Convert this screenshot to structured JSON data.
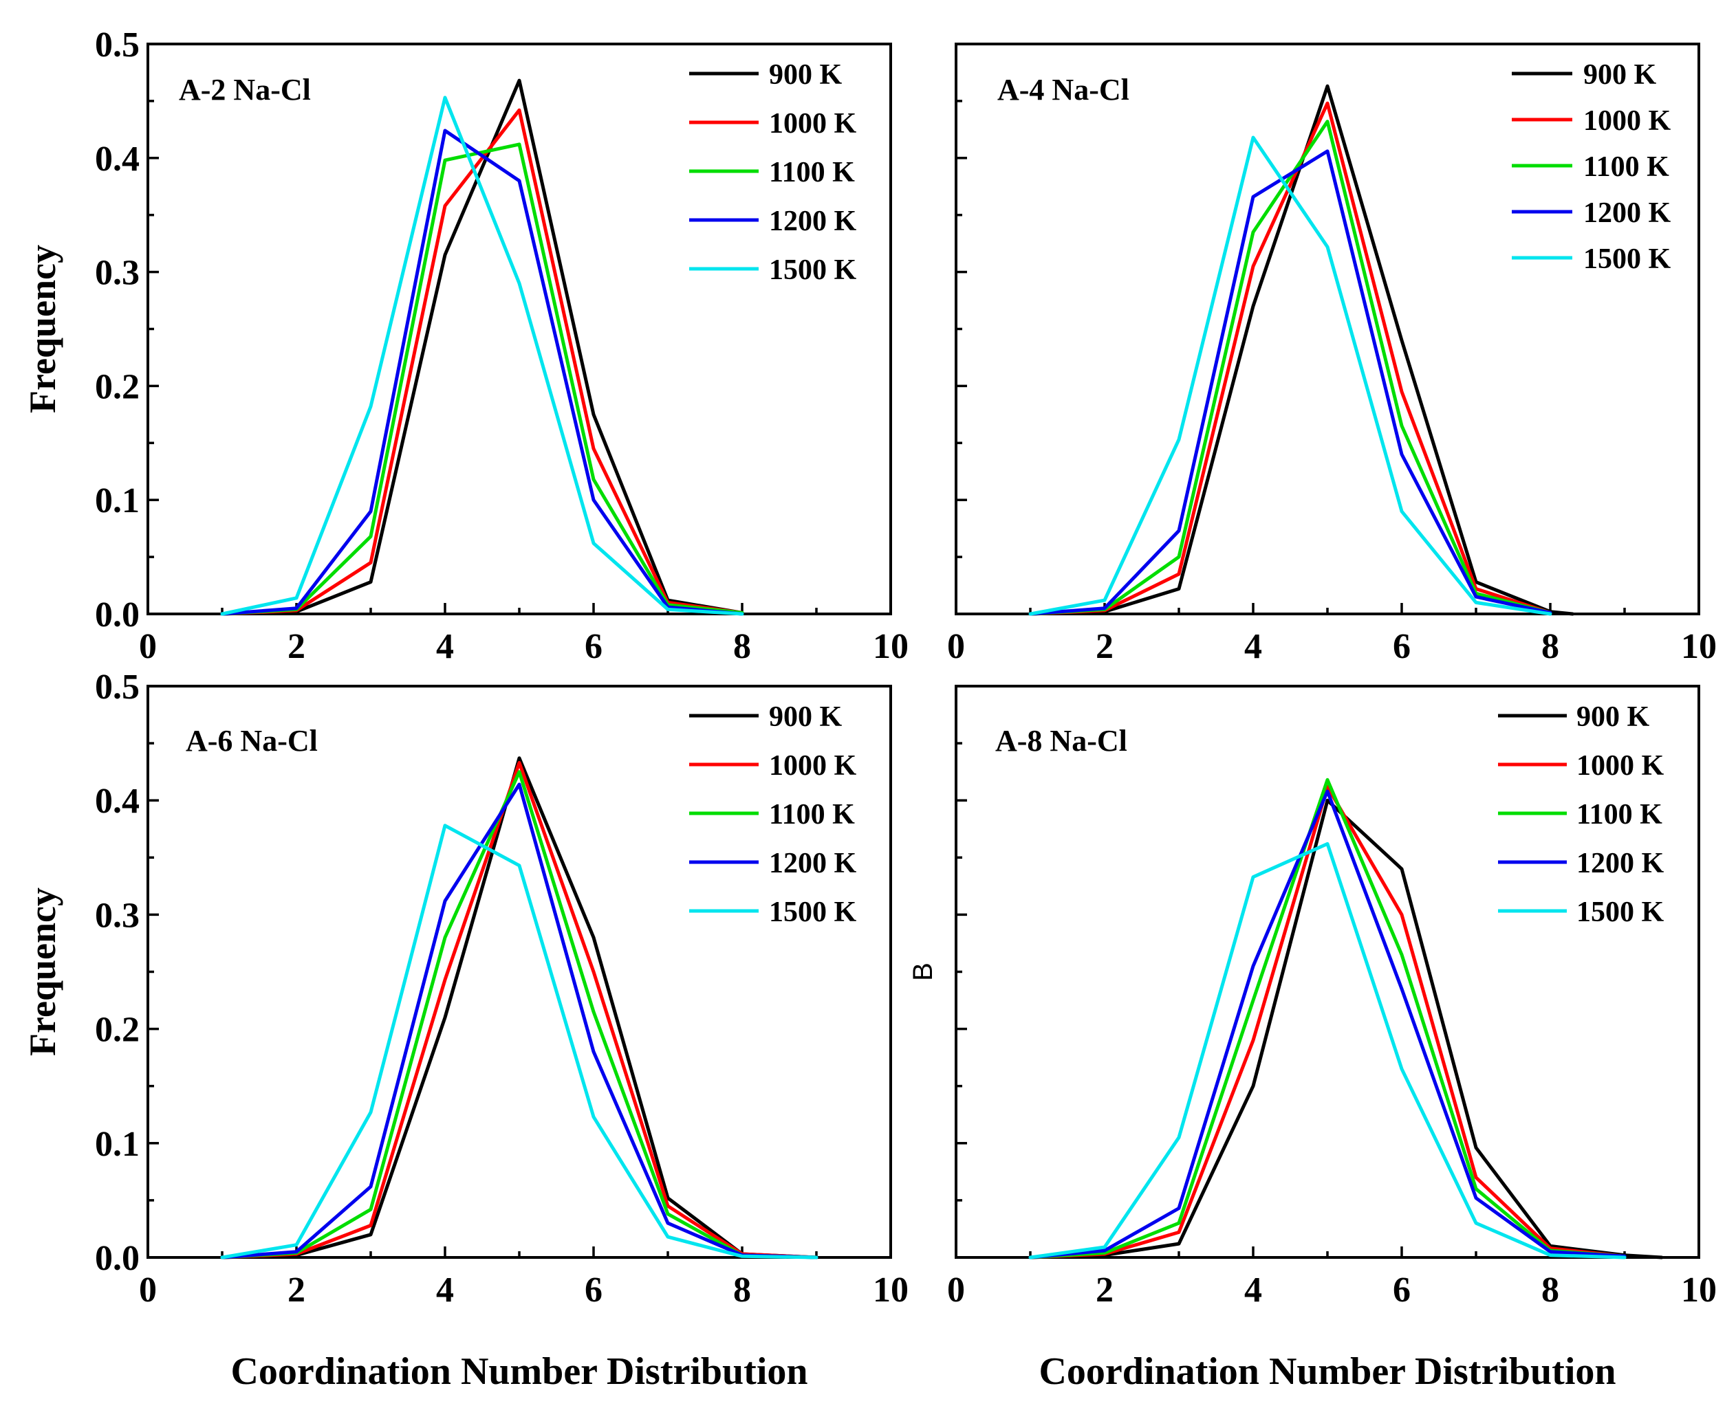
{
  "chart_data": [
    {
      "type": "line",
      "title": "A-2 Na-Cl",
      "ylabel": "Frequency",
      "xlabel": "Coordination Number Distribution",
      "xlim": [
        0,
        10
      ],
      "ylim": [
        0,
        0.5
      ],
      "xticks": [
        "0",
        "2",
        "4",
        "6",
        "8",
        "10"
      ],
      "yticks": [
        "0.0",
        "0.1",
        "0.2",
        "0.3",
        "0.4",
        "0.5"
      ],
      "legend_position": "top-right",
      "series": [
        {
          "name": "900 K",
          "color": "#000000",
          "x": [
            1,
            2,
            3,
            4,
            5,
            6,
            7,
            8
          ],
          "y": [
            0,
            0.002,
            0.028,
            0.315,
            0.468,
            0.175,
            0.012,
            0.001
          ]
        },
        {
          "name": "1000 K",
          "color": "#ff0000",
          "x": [
            1,
            2,
            3,
            4,
            5,
            6,
            7,
            8
          ],
          "y": [
            0,
            0.003,
            0.045,
            0.358,
            0.442,
            0.145,
            0.01,
            0.001
          ]
        },
        {
          "name": "1100 K",
          "color": "#00dd00",
          "x": [
            1,
            2,
            3,
            4,
            5,
            6,
            7,
            8
          ],
          "y": [
            0,
            0.004,
            0.068,
            0.398,
            0.412,
            0.118,
            0.008,
            0.001
          ]
        },
        {
          "name": "1200 K",
          "color": "#0000ee",
          "x": [
            1,
            2,
            3,
            4,
            5,
            6,
            7,
            8
          ],
          "y": [
            0,
            0.005,
            0.09,
            0.424,
            0.38,
            0.1,
            0.006,
            0
          ]
        },
        {
          "name": "1500 K",
          "color": "#00e5ee",
          "x": [
            1,
            2,
            3,
            4,
            5,
            6,
            7,
            8
          ],
          "y": [
            0,
            0.014,
            0.182,
            0.453,
            0.29,
            0.062,
            0.004,
            0
          ]
        }
      ]
    },
    {
      "type": "line",
      "title": "A-4 Na-Cl",
      "ylabel": "",
      "xlabel": "Coordination Number Distribution",
      "xlim": [
        0,
        10
      ],
      "ylim": [
        0,
        0.5
      ],
      "xticks": [
        "0",
        "2",
        "4",
        "6",
        "8",
        "10"
      ],
      "yticks": [],
      "legend_position": "top-right",
      "series": [
        {
          "name": "900 K",
          "color": "#000000",
          "x": [
            1,
            2,
            3,
            4,
            5,
            6,
            7,
            8,
            8.3
          ],
          "y": [
            0,
            0.002,
            0.022,
            0.27,
            0.463,
            0.24,
            0.028,
            0.002,
            0
          ]
        },
        {
          "name": "1000 K",
          "color": "#ff0000",
          "x": [
            1,
            2,
            3,
            4,
            5,
            6,
            7,
            8
          ],
          "y": [
            0,
            0.003,
            0.035,
            0.305,
            0.448,
            0.195,
            0.022,
            0.001
          ]
        },
        {
          "name": "1100 K",
          "color": "#00dd00",
          "x": [
            1,
            2,
            3,
            4,
            5,
            6,
            7,
            8
          ],
          "y": [
            0,
            0.004,
            0.05,
            0.335,
            0.432,
            0.165,
            0.018,
            0.001
          ]
        },
        {
          "name": "1200 K",
          "color": "#0000ee",
          "x": [
            1,
            2,
            3,
            4,
            5,
            6,
            7,
            8
          ],
          "y": [
            0,
            0.005,
            0.073,
            0.366,
            0.406,
            0.14,
            0.015,
            0.001
          ]
        },
        {
          "name": "1500 K",
          "color": "#00e5ee",
          "x": [
            1,
            2,
            3,
            4,
            5,
            6,
            7,
            8
          ],
          "y": [
            0,
            0.012,
            0.153,
            0.418,
            0.322,
            0.09,
            0.01,
            0
          ]
        }
      ]
    },
    {
      "type": "line",
      "title": "A-6 Na-Cl",
      "ylabel": "Frequency",
      "xlabel": "Coordination Number Distribution",
      "xlim": [
        0,
        10
      ],
      "ylim": [
        0,
        0.5
      ],
      "xticks": [
        "0",
        "2",
        "4",
        "6",
        "8",
        "10"
      ],
      "yticks": [
        "0.0",
        "0.1",
        "0.2",
        "0.3",
        "0.4",
        "0.5"
      ],
      "legend_position": "top-right",
      "series": [
        {
          "name": "900 K",
          "color": "#000000",
          "x": [
            1,
            2,
            3,
            4,
            5,
            6,
            7,
            8,
            9
          ],
          "y": [
            0,
            0.002,
            0.02,
            0.21,
            0.437,
            0.28,
            0.052,
            0.003,
            0
          ]
        },
        {
          "name": "1000 K",
          "color": "#ff0000",
          "x": [
            1,
            2,
            3,
            4,
            5,
            6,
            7,
            8,
            9
          ],
          "y": [
            0,
            0.003,
            0.028,
            0.243,
            0.433,
            0.25,
            0.045,
            0.003,
            0
          ]
        },
        {
          "name": "1100 K",
          "color": "#00dd00",
          "x": [
            1,
            2,
            3,
            4,
            5,
            6,
            7,
            8,
            9
          ],
          "y": [
            0,
            0.004,
            0.042,
            0.28,
            0.425,
            0.215,
            0.038,
            0.002,
            0
          ]
        },
        {
          "name": "1200 K",
          "color": "#0000ee",
          "x": [
            1,
            2,
            3,
            4,
            5,
            6,
            7,
            8,
            9
          ],
          "y": [
            0,
            0.005,
            0.062,
            0.312,
            0.414,
            0.18,
            0.03,
            0.002,
            0
          ]
        },
        {
          "name": "1500 K",
          "color": "#00e5ee",
          "x": [
            1,
            2,
            3,
            4,
            5,
            6,
            7,
            8,
            9
          ],
          "y": [
            0,
            0.011,
            0.127,
            0.378,
            0.343,
            0.123,
            0.018,
            0.001,
            0
          ]
        }
      ]
    },
    {
      "type": "line",
      "title": "A-8 Na-Cl",
      "ylabel": "B",
      "xlabel": "Coordination Number Distribution",
      "xlim": [
        0,
        10
      ],
      "ylim": [
        0,
        0.5
      ],
      "xticks": [
        "0",
        "2",
        "4",
        "6",
        "8",
        "10"
      ],
      "yticks": [],
      "legend_position": "top-right",
      "series": [
        {
          "name": "900 K",
          "color": "#000000",
          "x": [
            1,
            2,
            3,
            4,
            5,
            6,
            7,
            8,
            9,
            9.5
          ],
          "y": [
            0,
            0.002,
            0.012,
            0.15,
            0.4,
            0.34,
            0.096,
            0.01,
            0.002,
            0
          ]
        },
        {
          "name": "1000 K",
          "color": "#ff0000",
          "x": [
            1,
            2,
            3,
            4,
            5,
            6,
            7,
            8,
            9
          ],
          "y": [
            0,
            0.003,
            0.022,
            0.19,
            0.412,
            0.3,
            0.07,
            0.008,
            0.001
          ]
        },
        {
          "name": "1100 K",
          "color": "#00dd00",
          "x": [
            1,
            2,
            3,
            4,
            5,
            6,
            7,
            8,
            9
          ],
          "y": [
            0,
            0.004,
            0.03,
            0.225,
            0.418,
            0.265,
            0.06,
            0.006,
            0.001
          ]
        },
        {
          "name": "1200 K",
          "color": "#0000ee",
          "x": [
            1,
            2,
            3,
            4,
            5,
            6,
            7,
            8,
            9
          ],
          "y": [
            0,
            0.006,
            0.043,
            0.255,
            0.408,
            0.235,
            0.052,
            0.005,
            0.001
          ]
        },
        {
          "name": "1500 K",
          "color": "#00e5ee",
          "x": [
            1,
            2,
            3,
            4,
            5,
            6,
            7,
            8,
            9
          ],
          "y": [
            0,
            0.009,
            0.105,
            0.333,
            0.362,
            0.165,
            0.03,
            0.002,
            0
          ]
        }
      ]
    }
  ]
}
